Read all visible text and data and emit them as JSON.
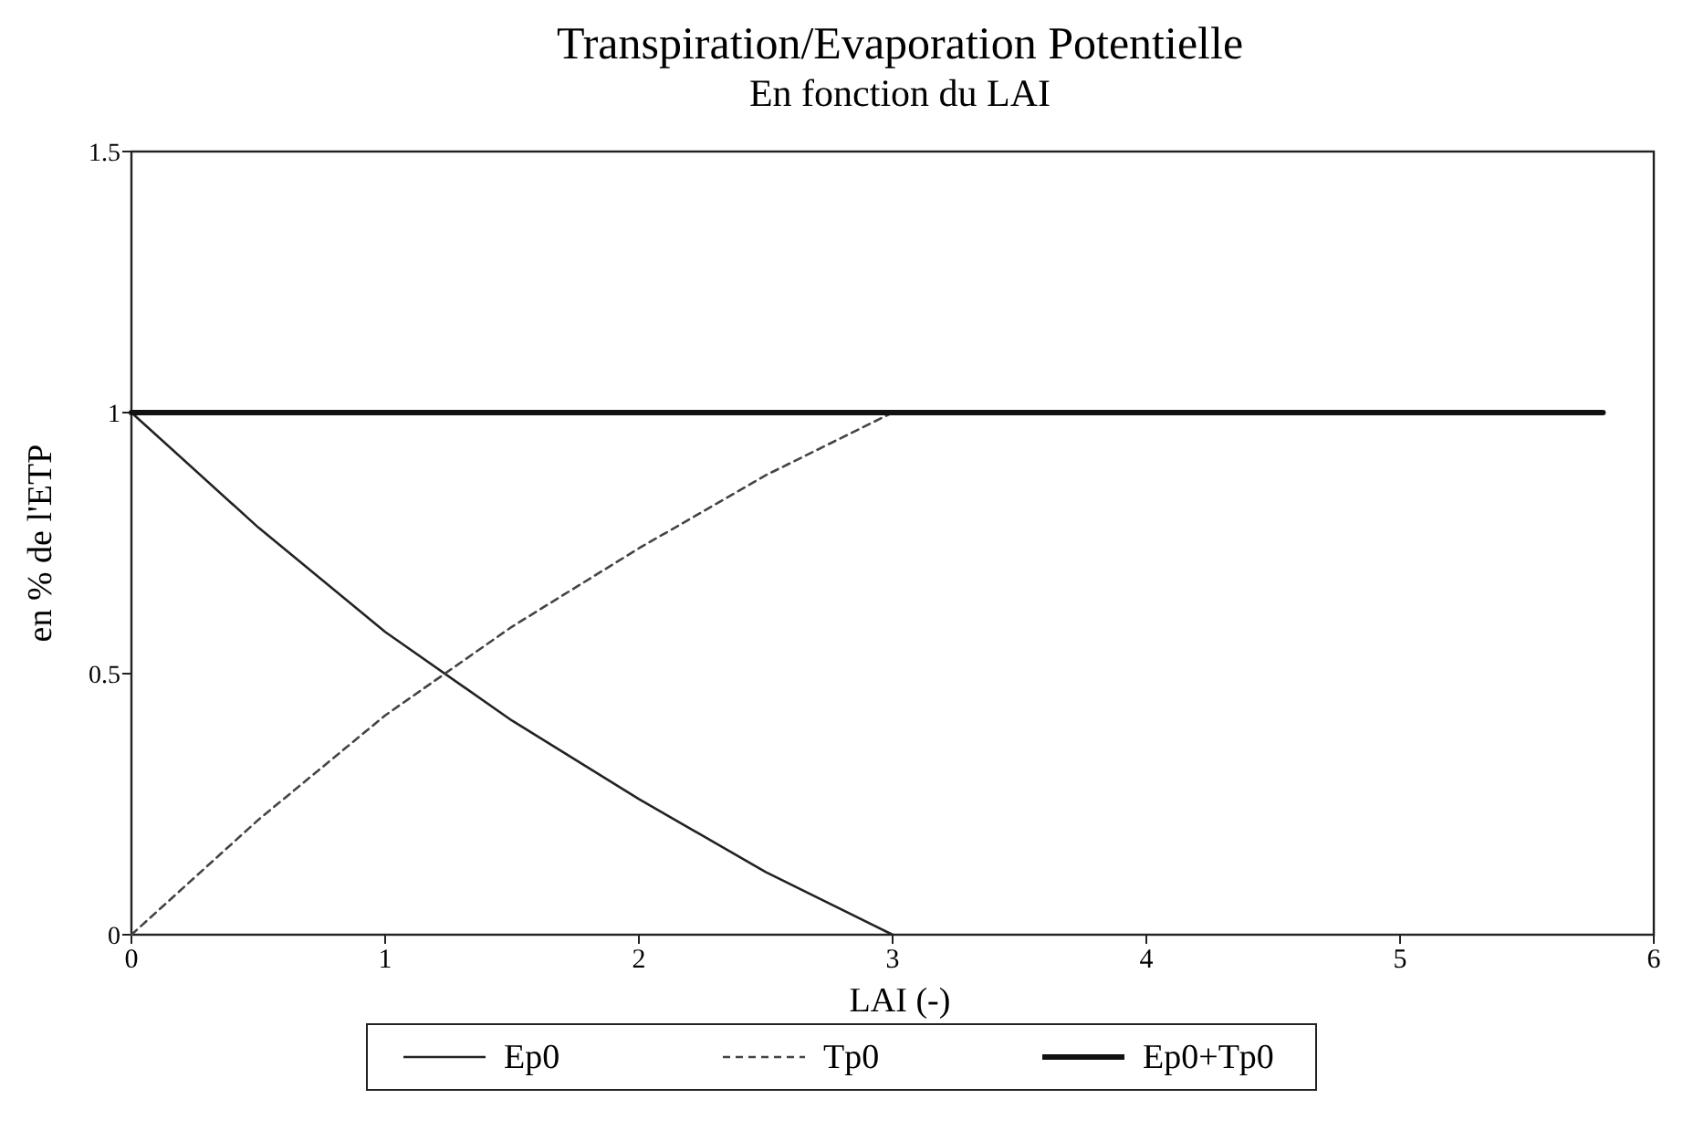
{
  "chart_data": {
    "type": "line",
    "title": "Transpiration/Evaporation Potentielle",
    "subtitle": "En fonction du LAI",
    "xlabel": "LAI (-)",
    "ylabel": "en % de l'ETP",
    "xlim": [
      0,
      6
    ],
    "xticks": [
      0,
      1,
      2,
      3,
      4,
      5,
      6
    ],
    "ylim": [
      0,
      1.5
    ],
    "yticks": [
      0,
      0.5,
      1,
      1.5
    ],
    "grid": false,
    "legend": "bottom",
    "marker": "none",
    "series": [
      {
        "name": "Ep0",
        "color": "#222222",
        "line_style": "solid",
        "x": [
          0,
          0.5,
          1,
          1.5,
          2,
          2.5,
          3
        ],
        "values": [
          1,
          0.78,
          0.58,
          0.41,
          0.26,
          0.12,
          0
        ]
      },
      {
        "name": "Tp0",
        "color": "#444444",
        "line_style": "dashed",
        "x": [
          0,
          0.5,
          1,
          1.5,
          2,
          2.5,
          3
        ],
        "values": [
          0,
          0.22,
          0.42,
          0.59,
          0.74,
          0.88,
          1
        ]
      },
      {
        "name": "Ep0+Tp0",
        "color": "#111111",
        "line_style": "solid",
        "x": [
          0,
          5.8
        ],
        "values": [
          1,
          1
        ]
      }
    ]
  }
}
